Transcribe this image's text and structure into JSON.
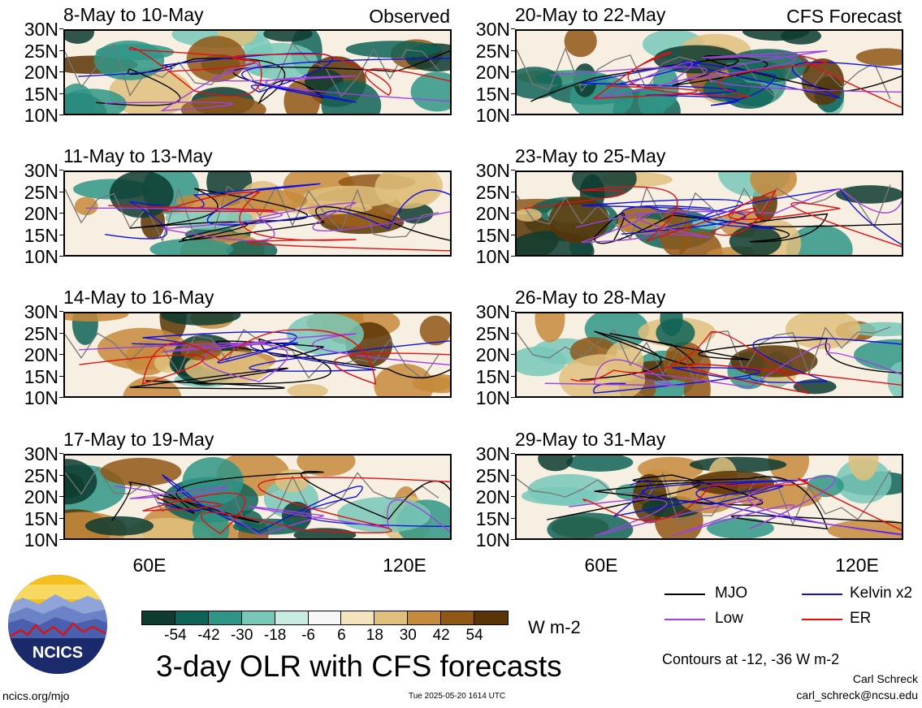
{
  "panels": [
    {
      "title": "8-May to 10-May",
      "tag": "Observed"
    },
    {
      "title": "20-May to 22-May",
      "tag": "CFS Forecast"
    },
    {
      "title": "11-May to 13-May",
      "tag": ""
    },
    {
      "title": "23-May to 25-May",
      "tag": ""
    },
    {
      "title": "14-May to 16-May",
      "tag": ""
    },
    {
      "title": "26-May to 28-May",
      "tag": ""
    },
    {
      "title": "17-May to 19-May",
      "tag": ""
    },
    {
      "title": "29-May to 31-May",
      "tag": ""
    }
  ],
  "lat_labels": [
    "30N",
    "25N",
    "20N",
    "15N",
    "10N"
  ],
  "lon_labels": [
    "60E",
    "120E"
  ],
  "legend": {
    "mjo": {
      "label": "MJO",
      "color": "#000000"
    },
    "kelvin": {
      "label": "Kelvin x2",
      "color": "#1010e0"
    },
    "low": {
      "label": "Low",
      "color": "#a040e0"
    },
    "er": {
      "label": "ER",
      "color": "#e01010"
    }
  },
  "colorbar": {
    "colors": [
      "#0d3b30",
      "#0f6357",
      "#2f9687",
      "#78c8b8",
      "#c8ece2",
      "#f7f7f7",
      "#f4e4bd",
      "#dfc07d",
      "#c58a3b",
      "#915715",
      "#5a3405"
    ],
    "labels": [
      "-54",
      "-42",
      "-30",
      "-18",
      "-6",
      "6",
      "18",
      "30",
      "42",
      "54"
    ],
    "units": "W m-2"
  },
  "main_title": "3-day OLR with CFS forecasts",
  "contours_note": "Contours at -12, -36 W m-2",
  "author": "Carl Schreck",
  "email": "carl_schreck@ncsu.edu",
  "url": "ncics.org/mjo",
  "timestamp": "Tue 2025-05-20 1614 UTC",
  "logo_text": "NCICS"
}
